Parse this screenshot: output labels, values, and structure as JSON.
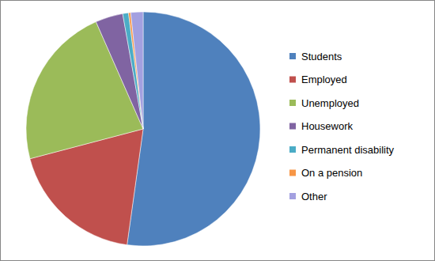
{
  "chart_data": {
    "type": "pie",
    "categories": [
      "Students",
      "Employed",
      "Unemployed",
      "Housework",
      "Permanent disability",
      "On a pension",
      "Other"
    ],
    "values": [
      52.2,
      18.7,
      22.5,
      3.8,
      0.8,
      0.3,
      1.7
    ],
    "colors": [
      "#4f81bd",
      "#c0504d",
      "#9bbb59",
      "#8064a2",
      "#4bacc6",
      "#f79646",
      "#a3a0e0"
    ],
    "legend": "right"
  }
}
